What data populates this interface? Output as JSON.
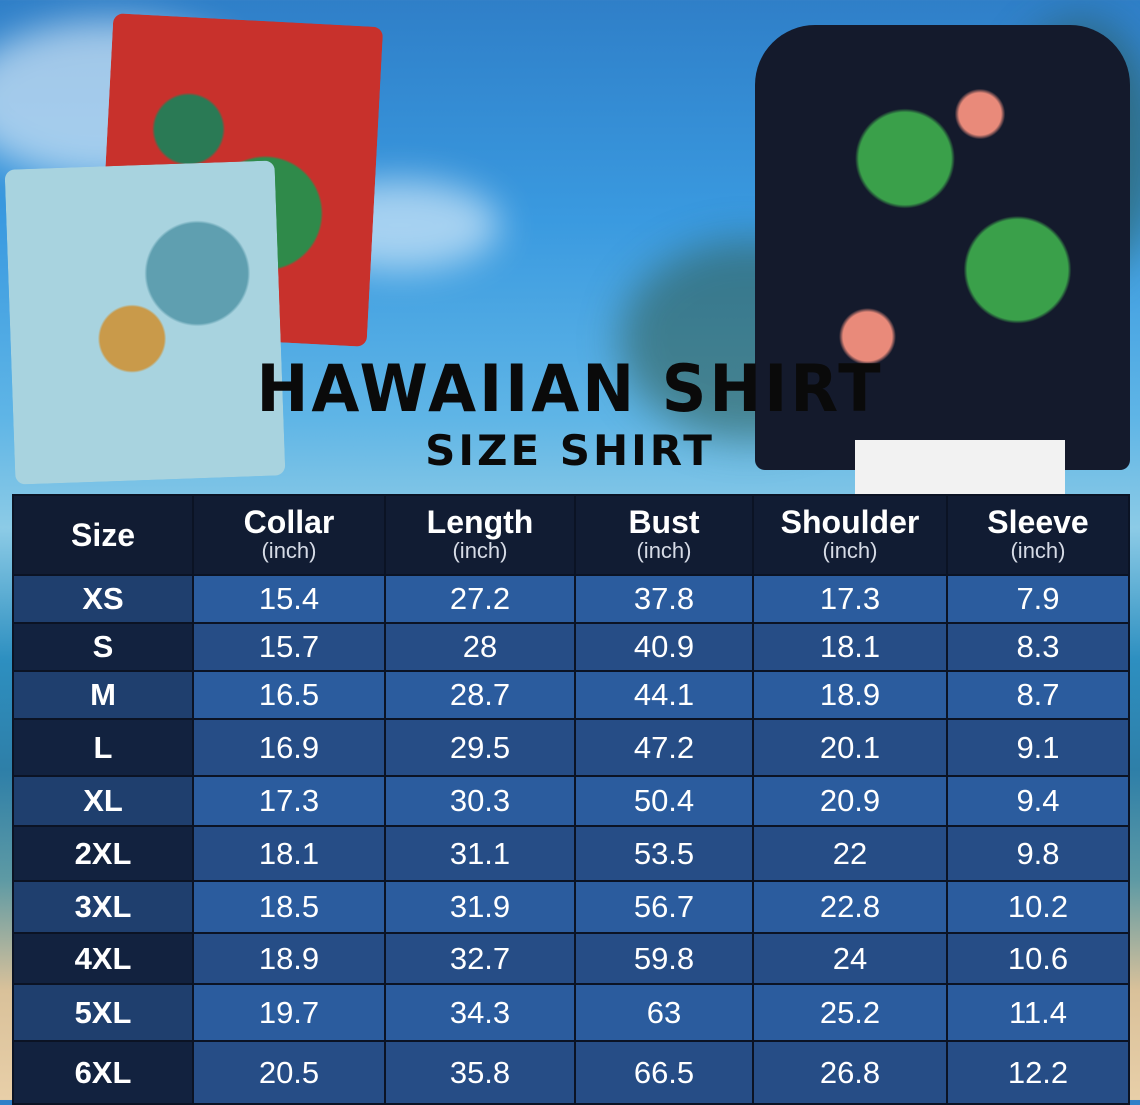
{
  "title": "HAWAIIAN SHIRT",
  "subtitle": "SIZE SHIRT",
  "table": {
    "size_header": "Size",
    "columns": [
      {
        "label": "Collar",
        "unit": "(inch)"
      },
      {
        "label": "Length",
        "unit": "(inch)"
      },
      {
        "label": "Bust",
        "unit": "(inch)"
      },
      {
        "label": "Shoulder",
        "unit": "(inch)"
      },
      {
        "label": "Sleeve",
        "unit": "(inch)"
      }
    ],
    "rows": [
      {
        "size": "XS",
        "values": [
          "15.4",
          "27.2",
          "37.8",
          "17.3",
          "7.9"
        ]
      },
      {
        "size": "S",
        "values": [
          "15.7",
          "28",
          "40.9",
          "18.1",
          "8.3"
        ]
      },
      {
        "size": "M",
        "values": [
          "16.5",
          "28.7",
          "44.1",
          "18.9",
          "8.7"
        ]
      },
      {
        "size": "L",
        "values": [
          "16.9",
          "29.5",
          "47.2",
          "20.1",
          "9.1"
        ]
      },
      {
        "size": "XL",
        "values": [
          "17.3",
          "30.3",
          "50.4",
          "20.9",
          "9.4"
        ]
      },
      {
        "size": "2XL",
        "values": [
          "18.1",
          "31.1",
          "53.5",
          "22",
          "9.8"
        ]
      },
      {
        "size": "3XL",
        "values": [
          "18.5",
          "31.9",
          "56.7",
          "22.8",
          "10.2"
        ]
      },
      {
        "size": "4XL",
        "values": [
          "18.9",
          "32.7",
          "59.8",
          "24",
          "10.6"
        ]
      },
      {
        "size": "5XL",
        "values": [
          "19.7",
          "34.3",
          "63",
          "25.2",
          "11.4"
        ]
      },
      {
        "size": "6XL",
        "values": [
          "20.5",
          "35.8",
          "66.5",
          "26.8",
          "12.2"
        ]
      }
    ]
  },
  "colors": {
    "header_bg": "#111c33",
    "row_light": "#2b5c9e",
    "row_dark": "#264d86",
    "size_light": "#1f3f6e",
    "size_dark": "#12223f"
  }
}
